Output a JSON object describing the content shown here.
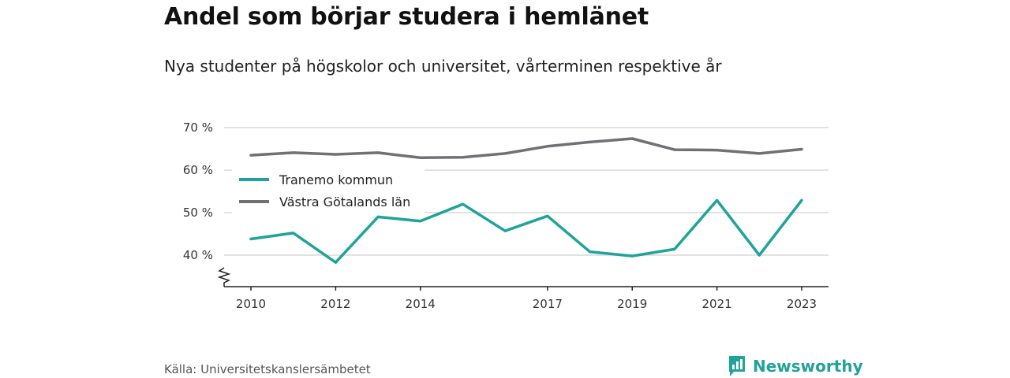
{
  "title": "Andel som börjar studera i hemlänet",
  "subtitle": "Nya studenter på högskolor och universitet, vårterminen respektive år",
  "source": "Källa: Universitetskanslersämbetet",
  "brand": {
    "name": "Newsworthy",
    "icon": "newsworthy-chart-icon",
    "color": "#21a39a"
  },
  "chart_data": {
    "type": "line",
    "x": [
      2010,
      2011,
      2012,
      2013,
      2014,
      2015,
      2016,
      2017,
      2018,
      2019,
      2020,
      2021,
      2022,
      2023
    ],
    "x_tick_labels": [
      "2010",
      "2012",
      "2014",
      "2017",
      "2019",
      "2021",
      "2023"
    ],
    "y_tick_labels": [
      "70 %",
      "60 %",
      "50 %",
      "40 %"
    ],
    "y_ticks": [
      70,
      60,
      50,
      40
    ],
    "ylim": [
      32.5,
      70
    ],
    "y_axis_break": true,
    "grid": true,
    "legend_position": "upper-left",
    "series": [
      {
        "name": "Tranemo kommun",
        "color": "#1fa39a",
        "values": [
          43.8,
          45.2,
          38.3,
          49.0,
          48.0,
          52.0,
          45.7,
          49.2,
          40.8,
          39.8,
          41.4,
          52.9,
          40.0,
          52.9
        ]
      },
      {
        "name": "Västra Götalands län",
        "color": "#707075",
        "values": [
          63.5,
          64.1,
          63.7,
          64.1,
          62.9,
          63.0,
          63.9,
          65.6,
          66.6,
          67.4,
          64.8,
          64.7,
          63.9,
          64.9
        ]
      }
    ]
  }
}
